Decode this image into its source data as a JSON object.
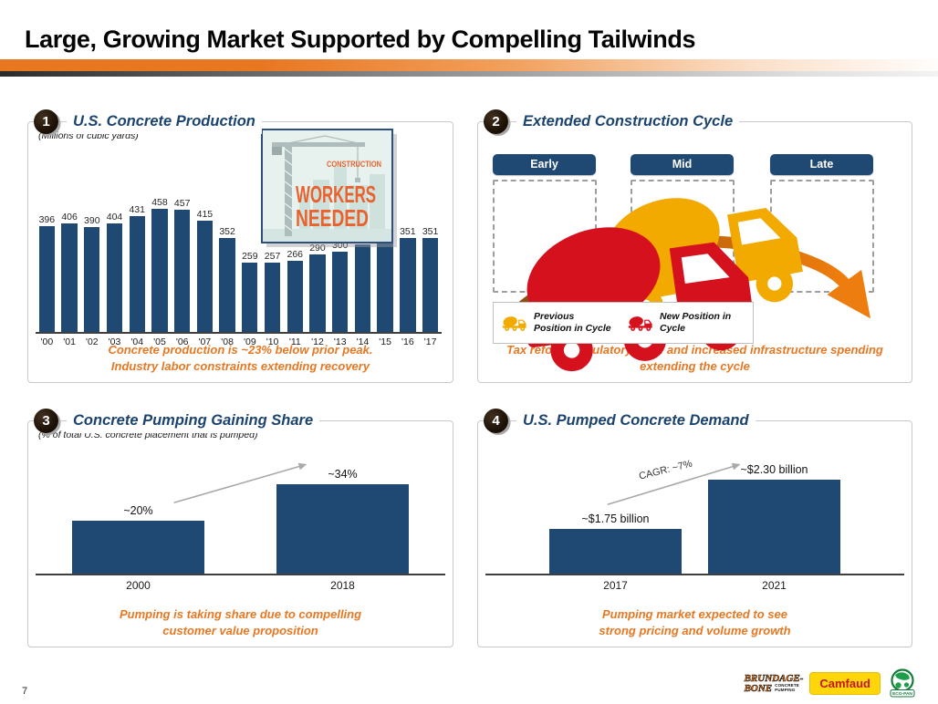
{
  "header": {
    "title": "Large, Growing Market Supported by Compelling Tailwinds"
  },
  "panels": {
    "production": {
      "number": "1",
      "title": "U.S. Concrete Production",
      "subtitle": "(Millions of cubic yards)",
      "image_tag": "CONSTRUCTION",
      "image_line1": "WORKERS",
      "image_line2": "NEEDED",
      "caption_line1": "Concrete production is ~23% below prior peak.",
      "caption_line2": "Industry labor constraints extending recovery"
    },
    "cycle": {
      "number": "2",
      "title": "Extended Construction Cycle",
      "stages": [
        "Early",
        "Mid",
        "Late"
      ],
      "legend": {
        "previous": {
          "icon": "yellow-mixer-truck-icon",
          "label": "Previous Position in Cycle"
        },
        "new": {
          "icon": "red-mixer-truck-icon",
          "label": "New Position in Cycle"
        }
      },
      "caption_line1": "Tax reform, regulatory relief and increased infrastructure spending",
      "caption_line2": "extending the cycle"
    },
    "share": {
      "number": "3",
      "title": "Concrete Pumping Gaining Share",
      "subtitle": "(% of total U.S. concrete placement that is pumped)",
      "caption_line1": "Pumping is taking share due to compelling",
      "caption_line2": "customer value proposition"
    },
    "demand": {
      "number": "4",
      "title": "U.S. Pumped Concrete Demand",
      "caption_line1": "Pumping market expected to see",
      "caption_line2": "strong pricing and volume growth"
    }
  },
  "chart_data": [
    {
      "type": "bar",
      "title": "U.S. Concrete Production",
      "ylabel": "Millions of cubic yards",
      "categories": [
        "'00",
        "'01",
        "'02",
        "'03",
        "'04",
        "'05",
        "'06",
        "'07",
        "'08",
        "'09",
        "'10",
        "'11",
        "'12",
        "'13",
        "'14",
        "'15",
        "'16",
        "'17"
      ],
      "values": [
        396,
        406,
        390,
        404,
        431,
        458,
        457,
        415,
        352,
        259,
        257,
        266,
        290,
        300,
        325,
        336,
        351,
        351
      ],
      "ylim": [
        0,
        500
      ],
      "grid": false,
      "data_labels": true,
      "bar_color": "#1F4973"
    },
    {
      "type": "bar",
      "title": "Concrete Pumping Gaining Share",
      "ylabel": "% of total U.S. concrete placement that is pumped",
      "categories": [
        "2000",
        "2018"
      ],
      "values": [
        20,
        34
      ],
      "labels": [
        "~20%",
        "~34%"
      ],
      "ylim": [
        0,
        40
      ],
      "grid": false,
      "bar_color": "#1F4973"
    },
    {
      "type": "bar",
      "title": "U.S. Pumped Concrete Demand",
      "ylabel": "$ billions",
      "categories": [
        "2017",
        "2021"
      ],
      "values": [
        1.75,
        2.3
      ],
      "labels": [
        "~$1.75 billion",
        "~$2.30 billion"
      ],
      "annotation": "CAGR: ~7%",
      "ylim": [
        1.25,
        2.55
      ],
      "grid": false,
      "bar_color": "#1F4973"
    }
  ],
  "colors": {
    "bar_navy": "#1F4973",
    "title_navy": "#1B4370",
    "caption_orange": "#E87722",
    "arc_brown": "#8C4A12",
    "arc_orange": "#F07E0C",
    "truck_yellow": "#F2A900",
    "truck_red": "#D6111E"
  },
  "footer": {
    "page_number": "7",
    "brundage_line1": "BRUNDAGE-",
    "brundage_line2": "BONE",
    "brundage_sub1": "CONCRETE",
    "brundage_sub2": "PUMPING",
    "camfaud": "Camfaud",
    "ecopan": "ECO-PAN"
  }
}
